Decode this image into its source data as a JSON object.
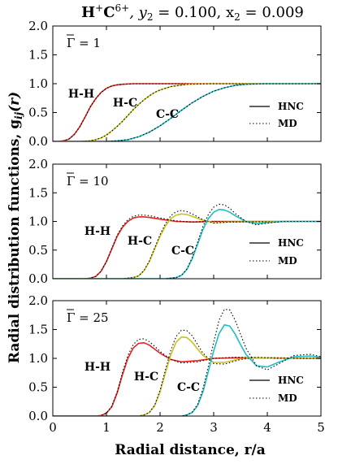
{
  "figure": {
    "title_main": "H",
    "title_sup1": "+",
    "title_c": "C",
    "title_sup2": "6+",
    "title_rest": ", y",
    "title_sub1": "2",
    "title_mid": " = 0.100, x",
    "title_sub2": "2",
    "title_end": " = 0.009",
    "xlabel": "Radial distance, r/a",
    "ylabel": "Radial distribution functions, g",
    "ylabel_sub": "ij",
    "ylabel_end": "(r)"
  },
  "chart_data": [
    {
      "type": "line",
      "panel_label": "Γ = 1",
      "xlim": [
        0,
        5
      ],
      "ylim": [
        0.0,
        2.0
      ],
      "xticks": [
        "0",
        "1",
        "2",
        "3",
        "4",
        "5"
      ],
      "yticks": [
        "0.0",
        "0.5",
        "1.0",
        "1.5",
        "2.0"
      ],
      "curve_labels": [
        "H-H",
        "H-C",
        "C-C"
      ],
      "legend": [
        "HNC",
        "MD"
      ],
      "series": [
        {
          "name": "H-H",
          "color": "#e8211f",
          "x": [
            0,
            0.1,
            0.2,
            0.3,
            0.4,
            0.5,
            0.6,
            0.7,
            0.8,
            0.9,
            1.0,
            1.1,
            1.2,
            1.3,
            1.5,
            1.8,
            2.2,
            5.0
          ],
          "hnc": [
            0,
            0.0,
            0.01,
            0.04,
            0.12,
            0.25,
            0.42,
            0.6,
            0.74,
            0.85,
            0.92,
            0.96,
            0.98,
            0.99,
            1.0,
            1.0,
            1.0,
            1.0
          ]
        },
        {
          "name": "H-C",
          "color": "#c9c221",
          "x": [
            0,
            0.5,
            0.7,
            0.8,
            0.9,
            1.0,
            1.1,
            1.2,
            1.3,
            1.4,
            1.5,
            1.6,
            1.7,
            1.8,
            1.9,
            2.0,
            2.2,
            2.5,
            3.0,
            5.0
          ],
          "hnc": [
            0,
            0.0,
            0.01,
            0.03,
            0.06,
            0.11,
            0.18,
            0.26,
            0.35,
            0.45,
            0.55,
            0.64,
            0.72,
            0.79,
            0.85,
            0.89,
            0.95,
            0.99,
            1.0,
            1.0
          ]
        },
        {
          "name": "C-C",
          "color": "#1cbfc4",
          "x": [
            0,
            1.0,
            1.2,
            1.4,
            1.6,
            1.8,
            2.0,
            2.2,
            2.4,
            2.6,
            2.8,
            3.0,
            3.2,
            3.4,
            3.6,
            4.0,
            4.5,
            5.0
          ],
          "hnc": [
            0,
            0.0,
            0.01,
            0.03,
            0.08,
            0.16,
            0.27,
            0.4,
            0.54,
            0.67,
            0.78,
            0.87,
            0.93,
            0.97,
            0.99,
            1.0,
            1.0,
            1.0
          ]
        }
      ]
    },
    {
      "type": "line",
      "panel_label": "Γ = 10",
      "xlim": [
        0,
        5
      ],
      "ylim": [
        0.0,
        2.0
      ],
      "xticks": [
        "0",
        "1",
        "2",
        "3",
        "4",
        "5"
      ],
      "yticks": [
        "0.0",
        "0.5",
        "1.0",
        "1.5",
        "2.0"
      ],
      "curve_labels": [
        "H-H",
        "H-C",
        "C-C"
      ],
      "legend": [
        "HNC",
        "MD"
      ],
      "series": [
        {
          "name": "H-H",
          "color": "#e8211f",
          "x": [
            0,
            0.6,
            0.7,
            0.8,
            0.9,
            1.0,
            1.1,
            1.2,
            1.3,
            1.4,
            1.5,
            1.6,
            1.7,
            1.8,
            2.0,
            2.3,
            2.6,
            3.0,
            5.0
          ],
          "hnc": [
            0,
            0.0,
            0.01,
            0.04,
            0.13,
            0.3,
            0.52,
            0.74,
            0.9,
            1.0,
            1.06,
            1.08,
            1.08,
            1.07,
            1.04,
            1.0,
            0.99,
            1.0,
            1.0
          ],
          "md": [
            0,
            0.0,
            0.01,
            0.04,
            0.13,
            0.3,
            0.53,
            0.76,
            0.92,
            1.03,
            1.09,
            1.11,
            1.11,
            1.1,
            1.06,
            1.01,
            0.99,
            1.0,
            1.0
          ]
        },
        {
          "name": "H-C",
          "color": "#c9c221",
          "x": [
            0,
            1.3,
            1.5,
            1.6,
            1.7,
            1.8,
            1.9,
            2.0,
            2.1,
            2.2,
            2.3,
            2.4,
            2.5,
            2.6,
            2.8,
            3.0,
            3.3,
            5.0
          ],
          "hnc": [
            0,
            0.0,
            0.02,
            0.05,
            0.14,
            0.3,
            0.52,
            0.74,
            0.92,
            1.05,
            1.11,
            1.13,
            1.12,
            1.09,
            1.02,
            0.98,
            0.99,
            1.0
          ],
          "md": [
            0,
            0.0,
            0.02,
            0.05,
            0.14,
            0.31,
            0.54,
            0.77,
            0.96,
            1.1,
            1.17,
            1.19,
            1.17,
            1.13,
            1.03,
            0.97,
            0.99,
            1.0
          ]
        },
        {
          "name": "C-C",
          "color": "#1cbfc4",
          "x": [
            0,
            2.1,
            2.3,
            2.4,
            2.5,
            2.6,
            2.7,
            2.8,
            2.9,
            3.0,
            3.1,
            3.2,
            3.3,
            3.4,
            3.6,
            3.8,
            4.0,
            4.3,
            5.0
          ],
          "hnc": [
            0,
            0.0,
            0.02,
            0.06,
            0.16,
            0.35,
            0.6,
            0.86,
            1.05,
            1.16,
            1.21,
            1.2,
            1.16,
            1.1,
            1.0,
            0.96,
            0.98,
            1.0,
            1.0
          ],
          "md": [
            0,
            0.0,
            0.02,
            0.06,
            0.17,
            0.37,
            0.64,
            0.91,
            1.12,
            1.25,
            1.3,
            1.29,
            1.23,
            1.14,
            1.0,
            0.94,
            0.97,
            1.0,
            1.0
          ]
        }
      ]
    },
    {
      "type": "line",
      "panel_label": "Γ = 25",
      "xlim": [
        0,
        5
      ],
      "ylim": [
        0.0,
        2.0
      ],
      "xticks": [
        "0",
        "1",
        "2",
        "3",
        "4",
        "5"
      ],
      "yticks": [
        "0.0",
        "0.5",
        "1.0",
        "1.5",
        "2.0"
      ],
      "curve_labels": [
        "H-H",
        "H-C",
        "C-C"
      ],
      "legend": [
        "HNC",
        "MD"
      ],
      "series": [
        {
          "name": "H-H",
          "color": "#e8211f",
          "x": [
            0,
            0.8,
            0.9,
            1.0,
            1.1,
            1.2,
            1.3,
            1.4,
            1.5,
            1.6,
            1.7,
            1.8,
            1.9,
            2.0,
            2.2,
            2.4,
            2.7,
            3.0,
            3.4,
            5.0
          ],
          "hnc": [
            0,
            0.0,
            0.01,
            0.05,
            0.16,
            0.4,
            0.72,
            1.0,
            1.18,
            1.26,
            1.27,
            1.23,
            1.16,
            1.09,
            0.98,
            0.94,
            0.96,
            1.0,
            1.01,
            1.0
          ],
          "md": [
            0,
            0.0,
            0.01,
            0.05,
            0.17,
            0.42,
            0.76,
            1.05,
            1.24,
            1.33,
            1.34,
            1.29,
            1.21,
            1.12,
            0.98,
            0.92,
            0.94,
            1.0,
            1.02,
            1.0
          ]
        },
        {
          "name": "H-C",
          "color": "#c9c221",
          "x": [
            0,
            1.6,
            1.7,
            1.8,
            1.9,
            2.0,
            2.1,
            2.2,
            2.3,
            2.4,
            2.5,
            2.6,
            2.7,
            2.8,
            3.0,
            3.2,
            3.5,
            3.8,
            4.2,
            5.0
          ],
          "hnc": [
            0,
            0.0,
            0.02,
            0.06,
            0.18,
            0.42,
            0.75,
            1.06,
            1.28,
            1.37,
            1.36,
            1.28,
            1.16,
            1.05,
            0.93,
            0.93,
            0.99,
            1.01,
            1.0,
            1.0
          ],
          "md": [
            0,
            0.0,
            0.02,
            0.06,
            0.19,
            0.45,
            0.8,
            1.14,
            1.38,
            1.49,
            1.48,
            1.39,
            1.24,
            1.09,
            0.91,
            0.9,
            0.98,
            1.02,
            1.0,
            1.0
          ]
        },
        {
          "name": "C-C",
          "color": "#1cbfc4",
          "x": [
            0,
            2.4,
            2.5,
            2.6,
            2.7,
            2.8,
            2.9,
            3.0,
            3.1,
            3.2,
            3.3,
            3.4,
            3.5,
            3.6,
            3.8,
            4.0,
            4.2,
            4.5,
            4.8,
            5.0
          ],
          "hnc": [
            0,
            0.0,
            0.02,
            0.06,
            0.18,
            0.42,
            0.77,
            1.13,
            1.43,
            1.58,
            1.56,
            1.42,
            1.24,
            1.07,
            0.87,
            0.85,
            0.93,
            1.03,
            1.04,
            1.02
          ],
          "md": [
            0,
            0.0,
            0.02,
            0.07,
            0.2,
            0.47,
            0.86,
            1.28,
            1.66,
            1.85,
            1.84,
            1.66,
            1.42,
            1.18,
            0.87,
            0.8,
            0.9,
            1.05,
            1.07,
            1.03
          ]
        }
      ]
    }
  ]
}
